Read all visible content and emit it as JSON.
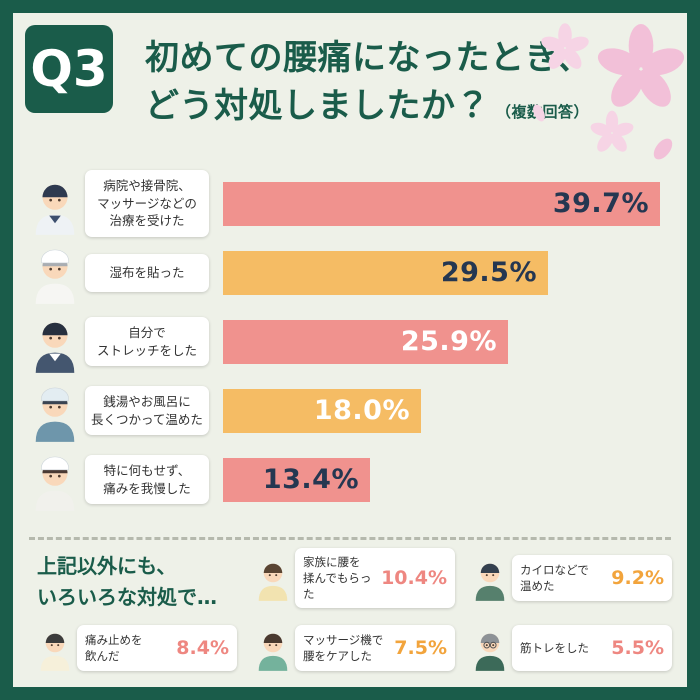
{
  "header": {
    "question_label": "Q3",
    "title_line1": "初めての腰痛になったとき、",
    "title_line2": "どう対処しましたか？",
    "note": "（複数回答）"
  },
  "chart_data": {
    "type": "bar",
    "orientation": "horizontal",
    "title": "初めての腰痛になったとき、どう対処しましたか？（複数回答）",
    "unit": "%",
    "xlim": [
      0,
      40
    ],
    "grid": false,
    "legend": false,
    "categories": [
      "病院や接骨院、マッサージなどの治療を受けた",
      "湿布を貼った",
      "自分でストレッチをした",
      "銭湯やお風呂に長くつかって温めた",
      "特に何もせず、痛みを我慢した"
    ],
    "values": [
      39.7,
      29.5,
      25.9,
      18.0,
      13.4
    ],
    "bar_colors": [
      "#f0928e",
      "#f5bc64",
      "#f0928e",
      "#f5bc64",
      "#f0928e"
    ],
    "additional_items": [
      {
        "label": "家族に腰を揉んでもらった",
        "value": 10.4
      },
      {
        "label": "カイロなどで温めた",
        "value": 9.2
      },
      {
        "label": "痛み止めを飲んだ",
        "value": 8.4
      },
      {
        "label": "マッサージ機で腰をケアした",
        "value": 7.5
      },
      {
        "label": "筋トレをした",
        "value": 5.5
      }
    ]
  },
  "bars": [
    {
      "label_lines": [
        "病院や接骨院、",
        "マッサージなどの",
        "治療を受けた"
      ],
      "pct": 39.7,
      "value_label": "39.7%",
      "color_key": "pink",
      "text_color": "navy",
      "icon": "therapist-woman-icon"
    },
    {
      "label_lines": [
        "湿布を貼った"
      ],
      "pct": 29.5,
      "value_label": "29.5%",
      "color_key": "orange",
      "text_color": "navy",
      "icon": "elderly-man-icon"
    },
    {
      "label_lines": [
        "自分で",
        "ストレッチをした"
      ],
      "pct": 25.9,
      "value_label": "25.9%",
      "color_key": "pink",
      "text_color": "white",
      "icon": "businessman-icon"
    },
    {
      "label_lines": [
        "銭湯やお風呂に",
        "長くつかって温めた"
      ],
      "pct": 18.0,
      "value_label": "18.0%",
      "color_key": "orange",
      "text_color": "white",
      "icon": "bathing-man-icon"
    },
    {
      "label_lines": [
        "特に何もせず、",
        "痛みを我慢した"
      ],
      "pct": 13.4,
      "value_label": "13.4%",
      "color_key": "pink",
      "text_color": "navy",
      "icon": "enduring-woman-icon"
    }
  ],
  "others": {
    "heading_line1": "上記以外にも、",
    "heading_line2": "いろいろな対処で…",
    "items": [
      {
        "label_lines": [
          "家族に腰を",
          "揉んでもらった"
        ],
        "value_label": "10.4%",
        "color_key": "pink",
        "icon": "apron-woman-icon"
      },
      {
        "label_lines": [
          "カイロなどで",
          "温めた"
        ],
        "value_label": "9.2%",
        "color_key": "orange",
        "icon": "vest-man-icon"
      },
      {
        "label_lines": [
          "痛み止めを",
          "飲んだ"
        ],
        "value_label": "8.4%",
        "color_key": "pink",
        "icon": "young-woman-icon"
      },
      {
        "label_lines": [
          "マッサージ機で",
          "腰をケアした"
        ],
        "value_label": "7.5%",
        "color_key": "orange",
        "icon": "apron-person-icon"
      },
      {
        "label_lines": [
          "筋トレをした"
        ],
        "value_label": "5.5%",
        "color_key": "pink",
        "icon": "glasses-man-icon"
      }
    ]
  },
  "icons": {
    "therapist-woman-icon": {
      "hair": "#2e3a50",
      "cloth": "#eef2f5",
      "collar": "#3c4f6e"
    },
    "elderly-man-icon": {
      "hair": "#a9adb2",
      "cloth": "#f6f6f3",
      "hat": "#ffffff"
    },
    "businessman-icon": {
      "hair": "#27303f",
      "cloth": "#44566f",
      "collar": "#ffffff"
    },
    "bathing-man-icon": {
      "hair": "#3a4452",
      "cloth": "#6e96ab",
      "hat": "#e3edf2"
    },
    "enduring-woman-icon": {
      "hair": "#4a3a33",
      "cloth": "#f1f1ec",
      "hat": "#ffffff"
    },
    "apron-woman-icon": {
      "hair": "#5a4533",
      "cloth": "#f2e3b0"
    },
    "vest-man-icon": {
      "hair": "#33404e",
      "cloth": "#56806d"
    },
    "young-woman-icon": {
      "hair": "#3c3c3c",
      "cloth": "#f6f0da"
    },
    "apron-person-icon": {
      "hair": "#4a3a30",
      "cloth": "#74b29c"
    },
    "glasses-man-icon": {
      "hair": "#8d9296",
      "cloth": "#3c6a59",
      "glasses": true
    }
  },
  "colors": {
    "frame_green": "#1a5c4a",
    "background": "#eef1e8",
    "title_green": "#1a5c4a",
    "bar_pink": "#f0928e",
    "bar_orange": "#f5bc64",
    "navy_text": "#253751",
    "pct_pink": "#ee8781",
    "pct_orange": "#f2a43c",
    "sakura_pink": "#f2c0d8",
    "sakura_light": "#f6d4e5"
  }
}
